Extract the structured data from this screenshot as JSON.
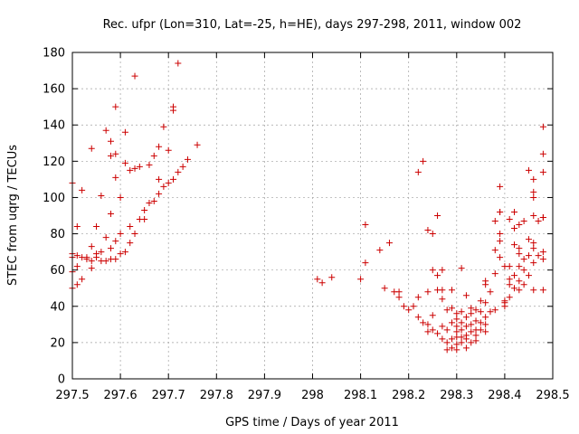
{
  "chart_data": {
    "type": "scatter",
    "title": "Rec. ufpr (Lon=310, Lat=-25, h=HE), days 297-298, 2011, window 002",
    "xlabel": "GPS time / Days of year 2011",
    "ylabel": "STEC from uqrg / TECUs",
    "xlim": [
      297.5,
      298.5
    ],
    "ylim": [
      0,
      180
    ],
    "xticks": [
      297.5,
      297.6,
      297.7,
      297.8,
      297.9,
      298,
      298.1,
      298.2,
      298.3,
      298.4,
      298.5
    ],
    "xtick_labels": [
      "297.5",
      "297.6",
      "297.7",
      "297.8",
      "297.9",
      "298",
      "298.1",
      "298.2",
      "298.3",
      "298.4",
      "298.5"
    ],
    "yticks": [
      0,
      20,
      40,
      60,
      80,
      100,
      120,
      140,
      160,
      180
    ],
    "ytick_labels": [
      "0",
      "20",
      "40",
      "60",
      "80",
      "100",
      "120",
      "140",
      "160",
      "180"
    ],
    "grid": true,
    "marker": "+",
    "color": "#cc0000",
    "series": [
      {
        "points": [
          [
            297.5,
            108
          ],
          [
            297.5,
            69
          ],
          [
            297.5,
            67
          ],
          [
            297.5,
            59
          ],
          [
            297.5,
            50
          ],
          [
            297.51,
            68
          ],
          [
            297.51,
            84
          ],
          [
            297.51,
            62
          ],
          [
            297.51,
            52
          ],
          [
            297.52,
            67
          ],
          [
            297.52,
            104
          ],
          [
            297.52,
            55
          ],
          [
            297.53,
            66
          ],
          [
            297.53,
            67
          ],
          [
            297.54,
            127
          ],
          [
            297.54,
            73
          ],
          [
            297.54,
            61
          ],
          [
            297.54,
            65
          ],
          [
            297.55,
            67
          ],
          [
            297.55,
            69
          ],
          [
            297.55,
            84
          ],
          [
            297.56,
            65
          ],
          [
            297.56,
            70
          ],
          [
            297.56,
            101
          ],
          [
            297.57,
            137
          ],
          [
            297.57,
            78
          ],
          [
            297.57,
            65
          ],
          [
            297.58,
            66
          ],
          [
            297.58,
            72
          ],
          [
            297.58,
            91
          ],
          [
            297.58,
            131
          ],
          [
            297.58,
            123
          ],
          [
            297.59,
            150
          ],
          [
            297.59,
            124
          ],
          [
            297.59,
            111
          ],
          [
            297.59,
            76
          ],
          [
            297.59,
            66
          ],
          [
            297.6,
            69
          ],
          [
            297.6,
            100
          ],
          [
            297.6,
            80
          ],
          [
            297.61,
            136
          ],
          [
            297.61,
            119
          ],
          [
            297.61,
            70
          ],
          [
            297.62,
            75
          ],
          [
            297.62,
            84
          ],
          [
            297.62,
            115
          ],
          [
            297.63,
            167
          ],
          [
            297.63,
            116
          ],
          [
            297.63,
            80
          ],
          [
            297.64,
            88
          ],
          [
            297.64,
            117
          ],
          [
            297.65,
            88
          ],
          [
            297.65,
            93
          ],
          [
            297.66,
            118
          ],
          [
            297.66,
            97
          ],
          [
            297.67,
            98
          ],
          [
            297.67,
            123
          ],
          [
            297.68,
            102
          ],
          [
            297.68,
            110
          ],
          [
            297.68,
            128
          ],
          [
            297.69,
            106
          ],
          [
            297.69,
            139
          ],
          [
            297.7,
            126
          ],
          [
            297.7,
            108
          ],
          [
            297.71,
            148
          ],
          [
            297.71,
            150
          ],
          [
            297.71,
            110
          ],
          [
            297.72,
            174
          ],
          [
            297.72,
            114
          ],
          [
            297.73,
            117
          ],
          [
            297.74,
            121
          ],
          [
            297.76,
            129
          ],
          [
            298.01,
            55
          ],
          [
            298.02,
            53
          ],
          [
            298.04,
            56
          ],
          [
            298.1,
            55
          ],
          [
            298.11,
            85
          ],
          [
            298.11,
            64
          ],
          [
            298.14,
            71
          ],
          [
            298.15,
            50
          ],
          [
            298.16,
            75
          ],
          [
            298.17,
            48
          ],
          [
            298.18,
            48
          ],
          [
            298.18,
            45
          ],
          [
            298.19,
            40
          ],
          [
            298.2,
            38
          ],
          [
            298.21,
            40
          ],
          [
            298.22,
            34
          ],
          [
            298.22,
            45
          ],
          [
            298.22,
            114
          ],
          [
            298.23,
            31
          ],
          [
            298.23,
            120
          ],
          [
            298.24,
            82
          ],
          [
            298.24,
            48
          ],
          [
            298.24,
            30
          ],
          [
            298.24,
            26
          ],
          [
            298.25,
            80
          ],
          [
            298.25,
            60
          ],
          [
            298.25,
            35
          ],
          [
            298.25,
            27
          ],
          [
            298.26,
            25
          ],
          [
            298.26,
            57
          ],
          [
            298.26,
            49
          ],
          [
            298.26,
            90
          ],
          [
            298.27,
            49
          ],
          [
            298.27,
            22
          ],
          [
            298.27,
            29
          ],
          [
            298.27,
            44
          ],
          [
            298.27,
            60
          ],
          [
            298.28,
            38
          ],
          [
            298.28,
            27
          ],
          [
            298.28,
            20
          ],
          [
            298.28,
            16
          ],
          [
            298.29,
            49
          ],
          [
            298.29,
            39
          ],
          [
            298.29,
            31
          ],
          [
            298.29,
            22
          ],
          [
            298.29,
            17
          ],
          [
            298.3,
            36
          ],
          [
            298.3,
            33
          ],
          [
            298.3,
            29
          ],
          [
            298.3,
            26
          ],
          [
            298.3,
            23
          ],
          [
            298.3,
            19
          ],
          [
            298.3,
            16
          ],
          [
            298.31,
            61
          ],
          [
            298.31,
            37
          ],
          [
            298.31,
            31
          ],
          [
            298.31,
            27
          ],
          [
            298.31,
            23
          ],
          [
            298.31,
            20
          ],
          [
            298.32,
            46
          ],
          [
            298.32,
            34
          ],
          [
            298.32,
            29
          ],
          [
            298.32,
            24
          ],
          [
            298.32,
            22
          ],
          [
            298.32,
            17
          ],
          [
            298.33,
            39
          ],
          [
            298.33,
            36
          ],
          [
            298.33,
            30
          ],
          [
            298.33,
            26
          ],
          [
            298.33,
            20
          ],
          [
            298.34,
            38
          ],
          [
            298.34,
            32
          ],
          [
            298.34,
            27
          ],
          [
            298.34,
            24
          ],
          [
            298.34,
            21
          ],
          [
            298.35,
            43
          ],
          [
            298.35,
            37
          ],
          [
            298.35,
            31
          ],
          [
            298.35,
            27
          ],
          [
            298.36,
            34
          ],
          [
            298.36,
            42
          ],
          [
            298.36,
            54
          ],
          [
            298.36,
            52
          ],
          [
            298.36,
            30
          ],
          [
            298.36,
            26
          ],
          [
            298.37,
            48
          ],
          [
            298.37,
            37
          ],
          [
            298.38,
            58
          ],
          [
            298.38,
            71
          ],
          [
            298.38,
            87
          ],
          [
            298.38,
            38
          ],
          [
            298.39,
            76
          ],
          [
            298.39,
            80
          ],
          [
            298.39,
            92
          ],
          [
            298.39,
            106
          ],
          [
            298.39,
            92
          ],
          [
            298.39,
            67
          ],
          [
            298.4,
            62
          ],
          [
            298.4,
            43
          ],
          [
            298.4,
            40
          ],
          [
            298.4,
            42
          ],
          [
            298.41,
            88
          ],
          [
            298.41,
            62
          ],
          [
            298.41,
            55
          ],
          [
            298.41,
            52
          ],
          [
            298.41,
            45
          ],
          [
            298.42,
            92
          ],
          [
            298.42,
            83
          ],
          [
            298.42,
            74
          ],
          [
            298.42,
            57
          ],
          [
            298.42,
            50
          ],
          [
            298.43,
            85
          ],
          [
            298.43,
            72
          ],
          [
            298.43,
            69
          ],
          [
            298.43,
            62
          ],
          [
            298.43,
            54
          ],
          [
            298.43,
            49
          ],
          [
            298.44,
            87
          ],
          [
            298.44,
            66
          ],
          [
            298.44,
            60
          ],
          [
            298.44,
            52
          ],
          [
            298.45,
            115
          ],
          [
            298.45,
            77
          ],
          [
            298.45,
            68
          ],
          [
            298.45,
            57
          ],
          [
            298.46,
            110
          ],
          [
            298.46,
            103
          ],
          [
            298.46,
            90
          ],
          [
            298.46,
            75
          ],
          [
            298.46,
            72
          ],
          [
            298.46,
            64
          ],
          [
            298.46,
            49
          ],
          [
            298.46,
            100
          ],
          [
            298.47,
            87
          ],
          [
            298.47,
            68
          ],
          [
            298.48,
            139
          ],
          [
            298.48,
            124
          ],
          [
            298.48,
            114
          ],
          [
            298.48,
            89
          ],
          [
            298.48,
            89
          ],
          [
            298.48,
            70
          ],
          [
            298.48,
            66
          ],
          [
            298.48,
            49
          ]
        ]
      }
    ]
  }
}
